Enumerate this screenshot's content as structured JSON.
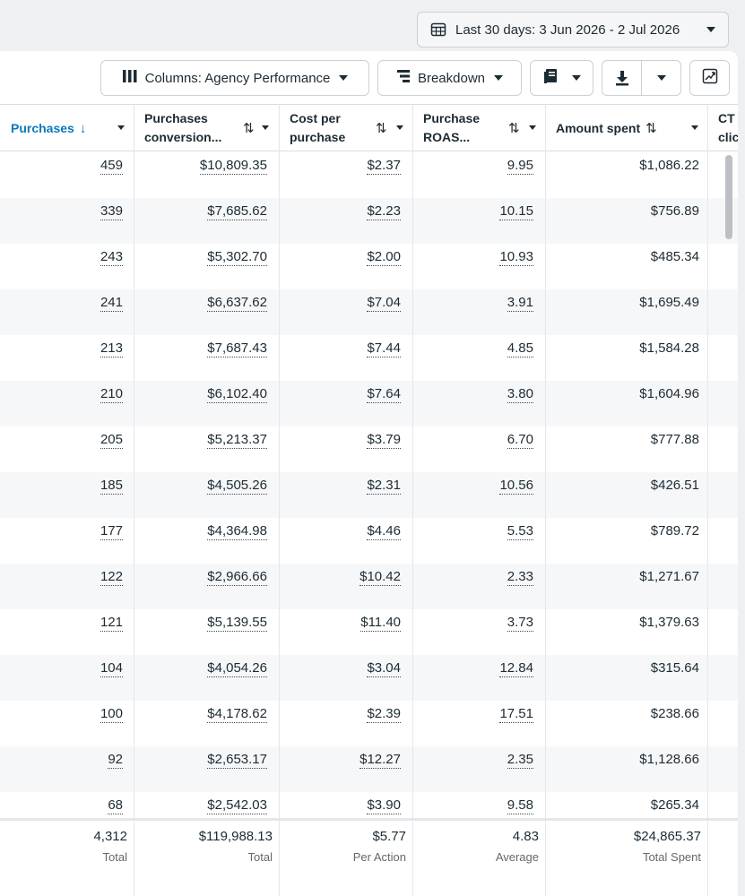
{
  "date_range": {
    "label": "Last 30 days: 3 Jun 2026 - 2 Jul 2026"
  },
  "toolbar": {
    "columns_label": "Columns: Agency Performance",
    "breakdown_label": "Breakdown"
  },
  "columns": [
    {
      "label": "Purchases",
      "sort": "↓",
      "active": true
    },
    {
      "label": "Purchases\nconversion...",
      "sort": "⇅"
    },
    {
      "label": "Cost per\npurchase",
      "sort": "⇅"
    },
    {
      "label": "Purchase\nROAS...",
      "sort": "⇅"
    },
    {
      "label": "Amount spent",
      "sort": "⇅"
    },
    {
      "label": "CT\nclic",
      "sort": ""
    }
  ],
  "rows": [
    [
      "459",
      "$10,809.35",
      "$2.37",
      "9.95",
      "$1,086.22"
    ],
    [
      "339",
      "$7,685.62",
      "$2.23",
      "10.15",
      "$756.89"
    ],
    [
      "243",
      "$5,302.70",
      "$2.00",
      "10.93",
      "$485.34"
    ],
    [
      "241",
      "$6,637.62",
      "$7.04",
      "3.91",
      "$1,695.49"
    ],
    [
      "213",
      "$7,687.43",
      "$7.44",
      "4.85",
      "$1,584.28"
    ],
    [
      "210",
      "$6,102.40",
      "$7.64",
      "3.80",
      "$1,604.96"
    ],
    [
      "205",
      "$5,213.37",
      "$3.79",
      "6.70",
      "$777.88"
    ],
    [
      "185",
      "$4,505.26",
      "$2.31",
      "10.56",
      "$426.51"
    ],
    [
      "177",
      "$4,364.98",
      "$4.46",
      "5.53",
      "$789.72"
    ],
    [
      "122",
      "$2,966.66",
      "$10.42",
      "2.33",
      "$1,271.67"
    ],
    [
      "121",
      "$5,139.55",
      "$11.40",
      "3.73",
      "$1,379.63"
    ],
    [
      "104",
      "$4,054.26",
      "$3.04",
      "12.84",
      "$315.64"
    ],
    [
      "100",
      "$4,178.62",
      "$2.39",
      "17.51",
      "$238.66"
    ],
    [
      "92",
      "$2,653.17",
      "$12.27",
      "2.35",
      "$1,128.66"
    ],
    [
      "68",
      "$2,542.03",
      "$3.90",
      "9.58",
      "$265.34"
    ]
  ],
  "totals": [
    {
      "value": "4,312",
      "label": "Total"
    },
    {
      "value": "$119,988.13",
      "label": "Total"
    },
    {
      "value": "$5.77",
      "label": "Per Action"
    },
    {
      "value": "4.83",
      "label": "Average"
    },
    {
      "value": "$24,865.37",
      "label": "Total Spent"
    }
  ],
  "colors": {
    "accent": "#0a78be",
    "text": "#1c2b33",
    "muted": "#65676b",
    "alt_row": "#f6f7f9"
  }
}
